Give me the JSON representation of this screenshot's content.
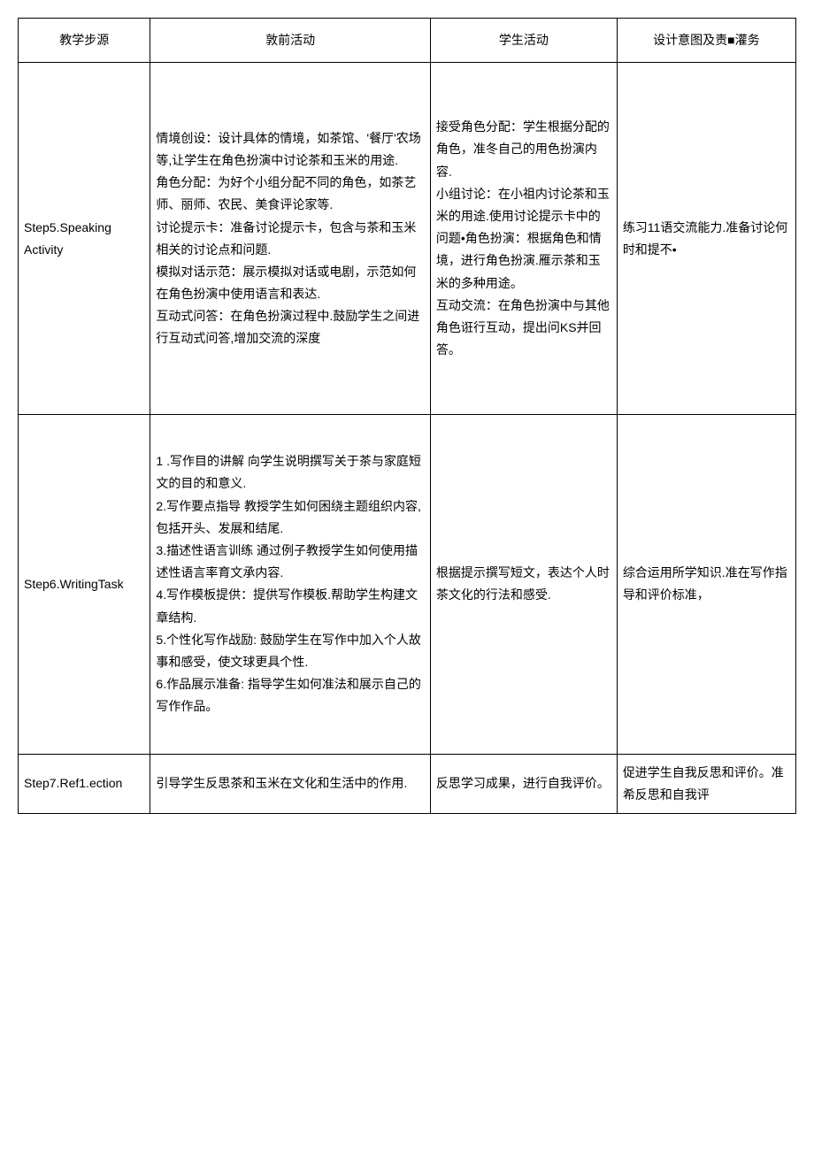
{
  "table": {
    "headers": {
      "step": "教学步源",
      "teacher": "敦前活动",
      "student": "学生活动",
      "design": "设计意图及责■灌务"
    },
    "rows": [
      {
        "step": "Step5.Speaking Activity",
        "teacher": "情境创设：设计具体的情境，如茶馆、'餐厅'农场等,让学生在角色扮演中讨论茶和玉米的用途.\n角色分配：为好个小组分配不同的角色，如茶艺师、丽师、农民、美食评论家等.\n讨论提示卡：准备讨论提示卡，包含与茶和玉米相关的讨论点和问题.\n模拟对话示范：展示模拟对话或电剧，示范如何在角色扮演中使用语言和表达.\n互动式问答：在角色扮演过程中.鼓励学生之间进行互动式问答,增加交流的深度",
        "student": "接受角色分配：学生根据分配的角色，准冬自己的用色扮演内容.\n小组讨论：在小祖内讨论茶和玉米的用途.使用讨论提示卡中的问题•角色扮演：根据角色和情境，进行角色扮演.雁示茶和玉米的多种用途。\n互动交流：在角色扮演中与其他角色诳行互动，提出问KS并回答。",
        "design": "练习11语交流能力.准备讨论何时和提不•"
      },
      {
        "step": "Step6.WritingTask",
        "teacher": "1          .写作目的讲解 向学生说明撰写关于茶与家庭短文的目的和意义.\n2.写作要点指导 教授学生如何困绕主题组织内容,包括开头、发展和结尾.\n3.描述性语言训练 通过例子教授学生如何使用描述性语言率育文承内容.\n4.写作模板提供：提供写作模板.帮助学生构建文章结构.\n5.个性化写作战励: 鼓励学生在写作中加入个人故事和感受，使文球更具个性.\n6.作品展示准备: 指导学生如何准法和展示自己的写作作品。",
        "student": "根据提示撰写短文，表达个人时茶文化的行法和感受.",
        "design": "综合运用所学知识.准在写作指导和评价标准，"
      },
      {
        "step": "Step7.Ref1.ection",
        "teacher": "引导学生反思茶和玉米在文化和生活中的作用.",
        "student": "反思学习成果，进行自我评价。",
        "design": "促进学生自我反思和评价。准希反思和自我评"
      }
    ]
  }
}
